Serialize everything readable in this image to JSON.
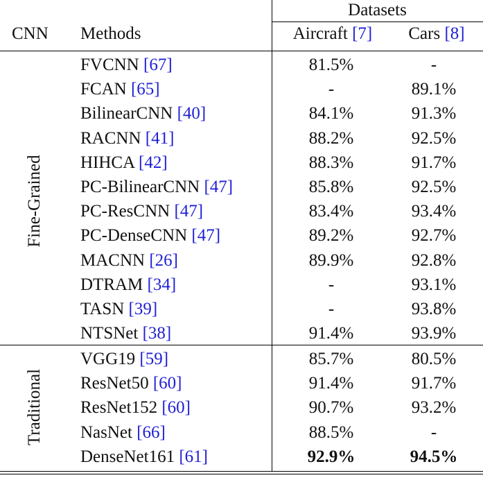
{
  "header": {
    "cnn": "CNN",
    "methods": "Methods",
    "datasets": "Datasets",
    "aircraft": {
      "name": "Aircraft",
      "ref": "[7]"
    },
    "cars": {
      "name": "Cars",
      "ref": "[8]"
    }
  },
  "groups": {
    "fine_grained": "Fine-Grained",
    "traditional": "Traditional"
  },
  "rows": [
    {
      "method": "FVCNN",
      "ref": "[67]",
      "aircraft": "81.5%",
      "cars": "-"
    },
    {
      "method": "FCAN",
      "ref": "[65]",
      "aircraft": "-",
      "cars": "89.1%"
    },
    {
      "method": "BilinearCNN",
      "ref": "[40]",
      "aircraft": "84.1%",
      "cars": "91.3%"
    },
    {
      "method": "RACNN",
      "ref": "[41]",
      "aircraft": "88.2%",
      "cars": "92.5%"
    },
    {
      "method": "HIHCA",
      "ref": "[42]",
      "aircraft": "88.3%",
      "cars": "91.7%"
    },
    {
      "method": "PC-BilinearCNN",
      "ref": "[47]",
      "aircraft": "85.8%",
      "cars": "92.5%"
    },
    {
      "method": "PC-ResCNN",
      "ref": "[47]",
      "aircraft": "83.4%",
      "cars": "93.4%"
    },
    {
      "method": "PC-DenseCNN",
      "ref": "[47]",
      "aircraft": "89.2%",
      "cars": "92.7%"
    },
    {
      "method": "MACNN",
      "ref": "[26]",
      "aircraft": "89.9%",
      "cars": "92.8%"
    },
    {
      "method": "DTRAM",
      "ref": "[34]",
      "aircraft": "-",
      "cars": "93.1%"
    },
    {
      "method": "TASN",
      "ref": "[39]",
      "aircraft": "-",
      "cars": "93.8%"
    },
    {
      "method": "NTSNet",
      "ref": "[38]",
      "aircraft": "91.4%",
      "cars": "93.9%"
    },
    {
      "method": "VGG19",
      "ref": "[59]",
      "aircraft": "85.7%",
      "cars": "80.5%"
    },
    {
      "method": "ResNet50",
      "ref": "[60]",
      "aircraft": "91.4%",
      "cars": "91.7%"
    },
    {
      "method": "ResNet152",
      "ref": "[60]",
      "aircraft": "90.7%",
      "cars": "93.2%"
    },
    {
      "method": "NasNet",
      "ref": "[66]",
      "aircraft": "88.5%",
      "cars": "-"
    },
    {
      "method": "DenseNet161",
      "ref": "[61]",
      "aircraft": "92.9%",
      "cars": "94.5%"
    }
  ],
  "colors": {
    "text": "#111111",
    "reference_link": "#1f1fd6",
    "rule": "#000000"
  }
}
